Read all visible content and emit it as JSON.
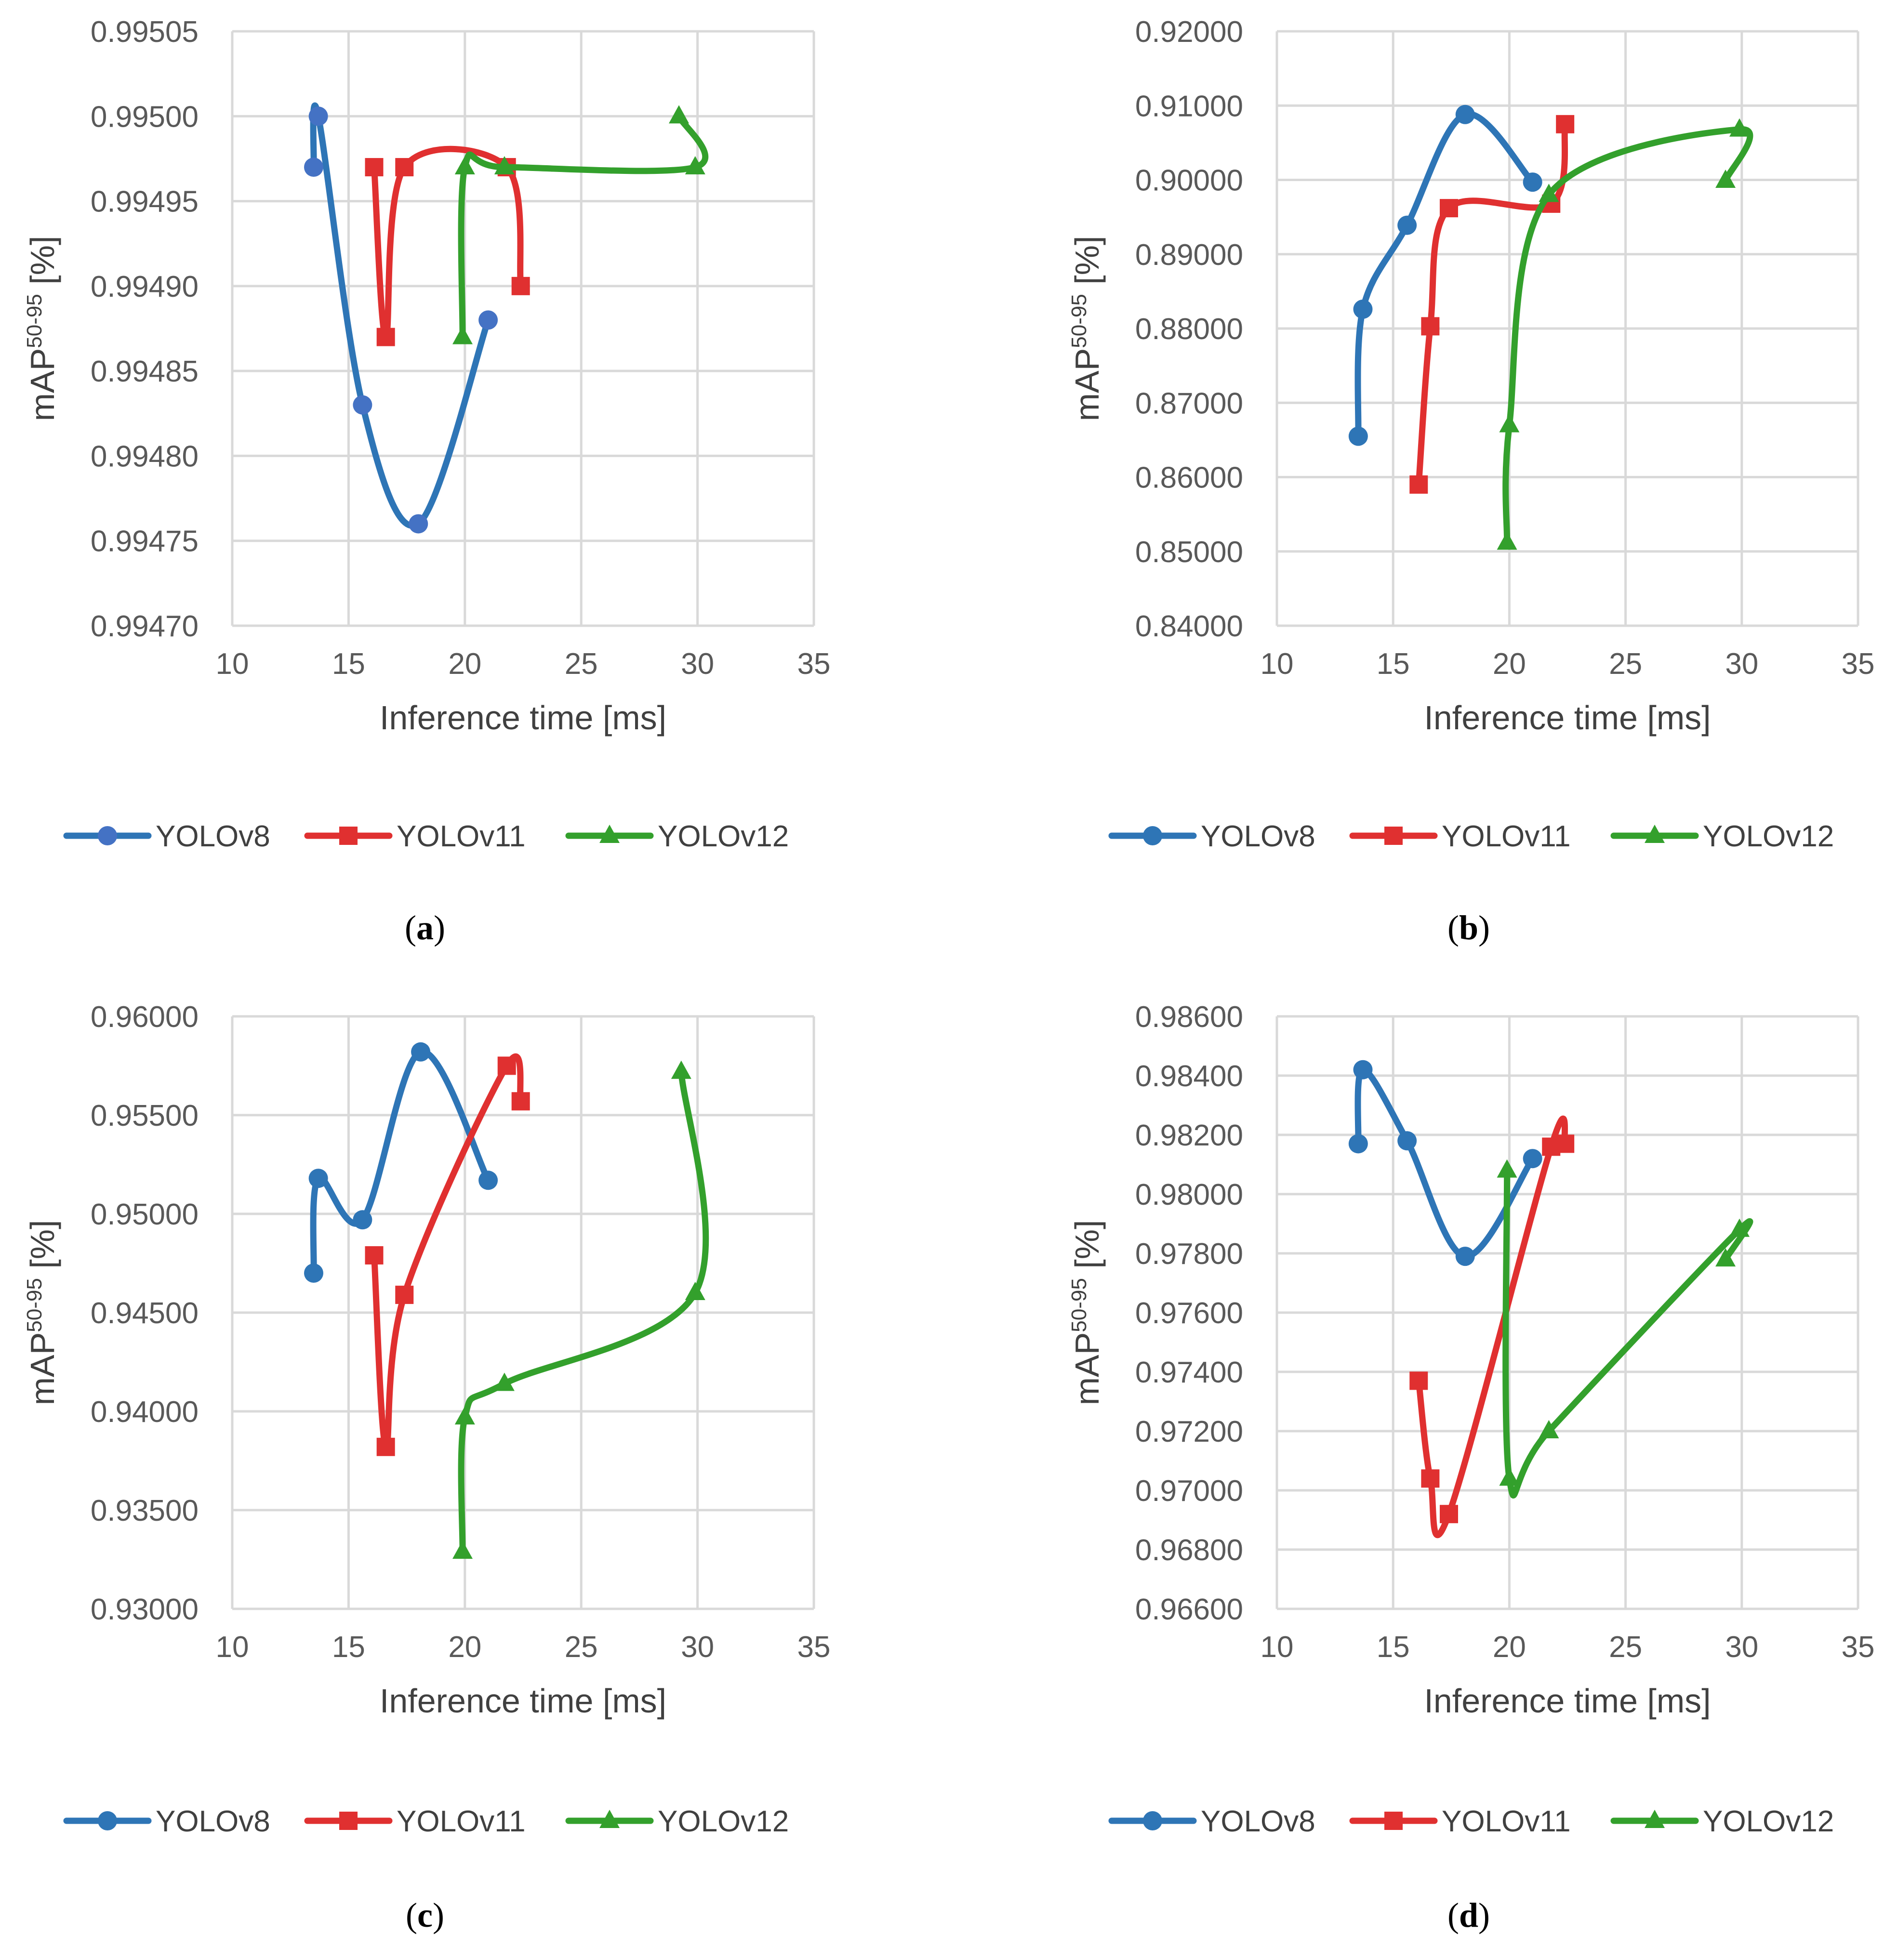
{
  "colors": {
    "YOLOv8": "#2e75b6",
    "YOLOv8_marker_panel_a": "#4472c4",
    "YOLOv11": "#e03030",
    "YOLOv12": "#33a02c",
    "grid": "#d9d9d9",
    "tick_text": "#595959"
  },
  "chart_data": [
    {
      "panel": "a",
      "type": "scatter",
      "smooth_lines": true,
      "xlabel": "Inference time [ms]",
      "ylabel_main": "mAP",
      "ylabel_sup": "50-95",
      "ylabel_unit": " [%]",
      "xlim": [
        10,
        35
      ],
      "ylim": [
        0.9947,
        0.99505
      ],
      "xticks": [
        "10",
        "15",
        "20",
        "25",
        "30",
        "35"
      ],
      "yticks": [
        "0.99505",
        "0.99500",
        "0.99495",
        "0.99490",
        "0.99485",
        "0.99480",
        "0.99475",
        "0.99470"
      ],
      "grid": true,
      "legend_position": "bottom",
      "series": [
        {
          "name": "YOLOv8",
          "marker": "circle",
          "points": [
            [
              13.5,
              0.99497
            ],
            [
              13.7,
              0.995
            ],
            [
              15.6,
              0.99483
            ],
            [
              18.0,
              0.99476
            ],
            [
              21.0,
              0.99488
            ]
          ]
        },
        {
          "name": "YOLOv11",
          "marker": "square",
          "points": [
            [
              16.1,
              0.99497
            ],
            [
              16.6,
              0.99487
            ],
            [
              17.4,
              0.99497
            ],
            [
              21.8,
              0.99497
            ],
            [
              22.4,
              0.9949
            ]
          ]
        },
        {
          "name": "YOLOv12",
          "marker": "triangle",
          "points": [
            [
              19.9,
              0.99487
            ],
            [
              20.0,
              0.99497
            ],
            [
              21.7,
              0.99497
            ],
            [
              29.9,
              0.99497
            ],
            [
              29.2,
              0.995
            ]
          ]
        }
      ]
    },
    {
      "panel": "b",
      "type": "scatter",
      "smooth_lines": true,
      "xlabel": "Inference time [ms]",
      "ylabel_main": "mAP",
      "ylabel_sup": "50-95",
      "ylabel_unit": " [%]",
      "xlim": [
        10,
        35
      ],
      "ylim": [
        0.84,
        0.92
      ],
      "xticks": [
        "10",
        "15",
        "20",
        "25",
        "30",
        "35"
      ],
      "yticks": [
        "0.92000",
        "0.91000",
        "0.90000",
        "0.89000",
        "0.88000",
        "0.87000",
        "0.86000",
        "0.85000",
        "0.84000"
      ],
      "grid": true,
      "legend_position": "bottom",
      "series": [
        {
          "name": "YOLOv8",
          "marker": "circle",
          "points": [
            [
              13.5,
              0.8655
            ],
            [
              13.7,
              0.8826
            ],
            [
              15.6,
              0.8939
            ],
            [
              18.1,
              0.9088
            ],
            [
              21.0,
              0.8997
            ]
          ]
        },
        {
          "name": "YOLOv11",
          "marker": "square",
          "points": [
            [
              16.1,
              0.859
            ],
            [
              16.6,
              0.8803
            ],
            [
              17.4,
              0.8962
            ],
            [
              21.8,
              0.8968
            ],
            [
              22.4,
              0.9075
            ]
          ]
        },
        {
          "name": "YOLOv12",
          "marker": "triangle",
          "points": [
            [
              19.9,
              0.8512
            ],
            [
              20.0,
              0.867
            ],
            [
              21.7,
              0.898
            ],
            [
              29.9,
              0.9068
            ],
            [
              29.3,
              0.8999
            ]
          ]
        }
      ]
    },
    {
      "panel": "c",
      "type": "scatter",
      "smooth_lines": true,
      "xlabel": "Inference time [ms]",
      "ylabel_main": "mAP",
      "ylabel_sup": "50-95",
      "ylabel_unit": " [%]",
      "xlim": [
        10,
        35
      ],
      "ylim": [
        0.93,
        0.96
      ],
      "xticks": [
        "10",
        "15",
        "20",
        "25",
        "30",
        "35"
      ],
      "yticks": [
        "0.96000",
        "0.95500",
        "0.95000",
        "0.94500",
        "0.94000",
        "0.93500",
        "0.93000"
      ],
      "grid": true,
      "legend_position": "bottom",
      "series": [
        {
          "name": "YOLOv8",
          "marker": "circle",
          "points": [
            [
              13.5,
              0.947
            ],
            [
              13.7,
              0.9518
            ],
            [
              15.6,
              0.9497
            ],
            [
              18.1,
              0.9582
            ],
            [
              21.0,
              0.9517
            ]
          ]
        },
        {
          "name": "YOLOv11",
          "marker": "square",
          "points": [
            [
              16.1,
              0.9479
            ],
            [
              16.6,
              0.9382
            ],
            [
              17.4,
              0.9459
            ],
            [
              21.8,
              0.9575
            ],
            [
              22.4,
              0.9557
            ]
          ]
        },
        {
          "name": "YOLOv12",
          "marker": "triangle",
          "points": [
            [
              19.9,
              0.9329
            ],
            [
              20.0,
              0.9397
            ],
            [
              21.7,
              0.9414
            ],
            [
              29.9,
              0.946
            ],
            [
              29.3,
              0.9572
            ]
          ]
        }
      ]
    },
    {
      "panel": "d",
      "type": "scatter",
      "smooth_lines": true,
      "xlabel": "Inference time [ms]",
      "ylabel_main": "mAP",
      "ylabel_sup": "50-95",
      "ylabel_unit": " [%]",
      "xlim": [
        10,
        35
      ],
      "ylim": [
        0.966,
        0.986
      ],
      "xticks": [
        "10",
        "15",
        "20",
        "25",
        "30",
        "35"
      ],
      "yticks": [
        "0.98600",
        "0.98400",
        "0.98200",
        "0.98000",
        "0.97800",
        "0.97600",
        "0.97400",
        "0.97200",
        "0.97000",
        "0.96800",
        "0.96600"
      ],
      "grid": true,
      "legend_position": "bottom",
      "series": [
        {
          "name": "YOLOv8",
          "marker": "circle",
          "points": [
            [
              13.5,
              0.9817
            ],
            [
              13.7,
              0.9842
            ],
            [
              15.6,
              0.9818
            ],
            [
              18.1,
              0.9779
            ],
            [
              21.0,
              0.9812
            ]
          ]
        },
        {
          "name": "YOLOv11",
          "marker": "square",
          "points": [
            [
              16.1,
              0.9737
            ],
            [
              16.6,
              0.9704
            ],
            [
              17.4,
              0.9692
            ],
            [
              21.8,
              0.9816
            ],
            [
              22.4,
              0.9817
            ]
          ]
        },
        {
          "name": "YOLOv12",
          "marker": "triangle",
          "points": [
            [
              19.9,
              0.9808
            ],
            [
              20.0,
              0.9704
            ],
            [
              21.7,
              0.972
            ],
            [
              29.9,
              0.9788
            ],
            [
              29.3,
              0.9778
            ]
          ]
        }
      ]
    }
  ],
  "legend": {
    "items": [
      "YOLOv8",
      "YOLOv11",
      "YOLOv12"
    ]
  },
  "panel_labels": {
    "a": "a",
    "b": "b",
    "c": "c",
    "d": "d",
    "open_paren": "(",
    "close_paren": ")"
  }
}
